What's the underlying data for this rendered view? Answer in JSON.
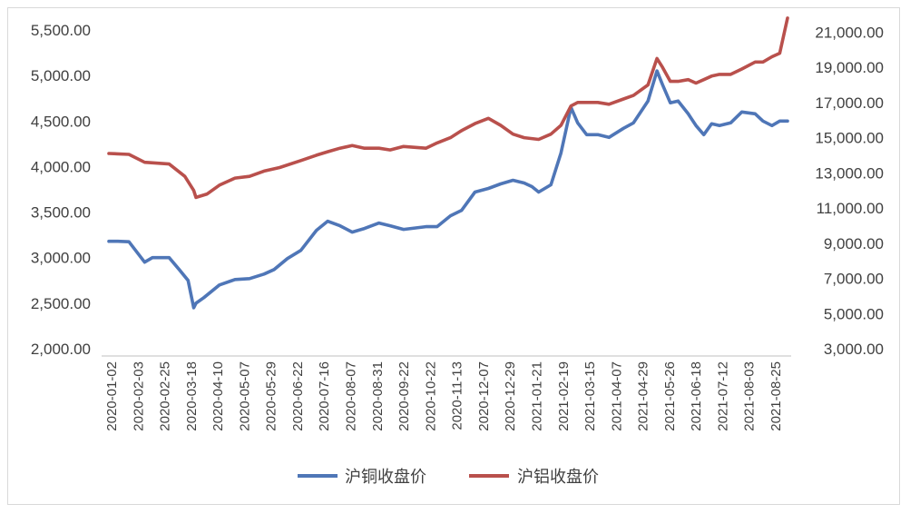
{
  "chart_data": {
    "type": "line",
    "title": "",
    "legend_position": "bottom",
    "grid": false,
    "y_left": {
      "range": [
        2000,
        5500
      ],
      "ticks": [
        "2,000.00",
        "2,500.00",
        "3,000.00",
        "3,500.00",
        "4,000.00",
        "4,500.00",
        "5,000.00",
        "5,500.00"
      ]
    },
    "y_right": {
      "range": [
        3000,
        22000
      ],
      "ticks": [
        "3,000.00",
        "5,000.00",
        "7,000.00",
        "9,000.00",
        "11,000.00",
        "13,000.00",
        "15,000.00",
        "17,000.00",
        "19,000.00",
        "21,000.00"
      ]
    },
    "x_tick_labels": [
      "2020-01-02",
      "2020-02-03",
      "2020-02-25",
      "2020-03-18",
      "2020-04-10",
      "2020-05-07",
      "2020-05-29",
      "2020-06-22",
      "2020-07-16",
      "2020-08-07",
      "2020-08-31",
      "2020-09-22",
      "2020-10-22",
      "2020-11-13",
      "2020-12-07",
      "2020-12-29",
      "2021-01-21",
      "2021-02-19",
      "2021-03-15",
      "2021-04-07",
      "2021-04-29",
      "2021-05-26",
      "2021-06-18",
      "2021-07-12",
      "2021-08-03",
      "2021-08-25"
    ],
    "series": [
      {
        "name": "沪铜收盘价",
        "axis": "left",
        "color": "#4f76b7",
        "x": [
          "2020-01-02",
          "2020-01-10",
          "2020-01-20",
          "2020-02-03",
          "2020-02-10",
          "2020-02-25",
          "2020-03-05",
          "2020-03-13",
          "2020-03-18",
          "2020-03-20",
          "2020-03-27",
          "2020-04-10",
          "2020-04-24",
          "2020-05-07",
          "2020-05-20",
          "2020-05-29",
          "2020-06-10",
          "2020-06-22",
          "2020-07-06",
          "2020-07-16",
          "2020-07-27",
          "2020-08-07",
          "2020-08-18",
          "2020-08-31",
          "2020-09-10",
          "2020-09-22",
          "2020-10-12",
          "2020-10-22",
          "2020-11-03",
          "2020-11-13",
          "2020-11-25",
          "2020-12-07",
          "2020-12-18",
          "2020-12-29",
          "2021-01-08",
          "2021-01-15",
          "2021-01-21",
          "2021-02-01",
          "2021-02-10",
          "2021-02-19",
          "2021-02-25",
          "2021-03-05",
          "2021-03-15",
          "2021-03-25",
          "2021-04-07",
          "2021-04-16",
          "2021-04-29",
          "2021-05-07",
          "2021-05-12",
          "2021-05-19",
          "2021-05-26",
          "2021-06-04",
          "2021-06-11",
          "2021-06-18",
          "2021-06-25",
          "2021-07-02",
          "2021-07-12",
          "2021-07-22",
          "2021-08-03",
          "2021-08-10",
          "2021-08-18",
          "2021-08-25",
          "2021-09-01"
        ],
        "y": [
          3180,
          3180,
          3175,
          2950,
          3000,
          3000,
          2870,
          2750,
          2450,
          2500,
          2560,
          2700,
          2760,
          2770,
          2820,
          2870,
          2990,
          3080,
          3300,
          3400,
          3350,
          3280,
          3320,
          3380,
          3350,
          3310,
          3340,
          3340,
          3460,
          3520,
          3720,
          3760,
          3810,
          3850,
          3820,
          3780,
          3720,
          3800,
          4150,
          4650,
          4480,
          4350,
          4350,
          4320,
          4420,
          4480,
          4720,
          5050,
          4900,
          4700,
          4720,
          4580,
          4450,
          4350,
          4470,
          4450,
          4480,
          4600,
          4580,
          4500,
          4450,
          4500,
          4500
        ]
      },
      {
        "name": "沪铝收盘价",
        "axis": "right",
        "color": "#b9504c",
        "x": [
          "2020-01-02",
          "2020-01-20",
          "2020-02-03",
          "2020-02-25",
          "2020-03-10",
          "2020-03-18",
          "2020-03-20",
          "2020-03-30",
          "2020-04-10",
          "2020-04-24",
          "2020-05-07",
          "2020-05-20",
          "2020-06-03",
          "2020-06-22",
          "2020-07-06",
          "2020-07-16",
          "2020-07-27",
          "2020-08-07",
          "2020-08-18",
          "2020-08-31",
          "2020-09-10",
          "2020-09-22",
          "2020-10-12",
          "2020-10-22",
          "2020-11-03",
          "2020-11-13",
          "2020-11-25",
          "2020-12-07",
          "2020-12-18",
          "2020-12-29",
          "2021-01-08",
          "2021-01-21",
          "2021-02-01",
          "2021-02-10",
          "2021-02-19",
          "2021-02-25",
          "2021-03-05",
          "2021-03-15",
          "2021-03-25",
          "2021-04-07",
          "2021-04-16",
          "2021-04-29",
          "2021-05-07",
          "2021-05-12",
          "2021-05-19",
          "2021-05-26",
          "2021-06-04",
          "2021-06-11",
          "2021-06-18",
          "2021-06-25",
          "2021-07-02",
          "2021-07-12",
          "2021-07-22",
          "2021-08-03",
          "2021-08-10",
          "2021-08-18",
          "2021-08-25",
          "2021-09-01"
        ],
        "y": [
          14100,
          14050,
          13600,
          13500,
          12800,
          12000,
          11600,
          11800,
          12300,
          12700,
          12800,
          13100,
          13300,
          13700,
          14000,
          14200,
          14400,
          14550,
          14400,
          14400,
          14300,
          14500,
          14400,
          14700,
          15000,
          15400,
          15800,
          16100,
          15700,
          15200,
          15000,
          14900,
          15200,
          15700,
          16800,
          17000,
          17000,
          17000,
          16900,
          17200,
          17400,
          18000,
          19500,
          19000,
          18200,
          18200,
          18300,
          18100,
          18300,
          18500,
          18600,
          18600,
          18900,
          19300,
          19300,
          19600,
          19800,
          21800
        ]
      }
    ]
  }
}
